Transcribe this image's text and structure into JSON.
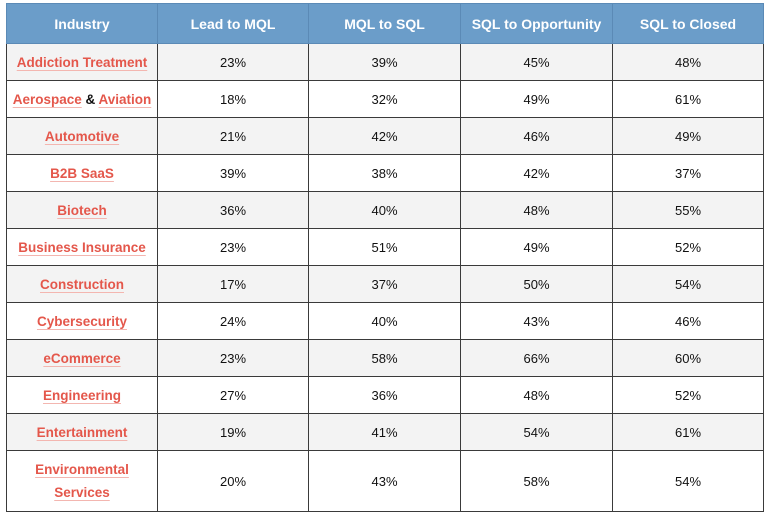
{
  "table": {
    "headers": [
      "Industry",
      "Lead to MQL",
      "MQL to SQL",
      "SQL to Opportunity",
      "SQL to Closed"
    ],
    "rows": [
      {
        "industry": "Addiction Treatment",
        "lead_to_mql": "23%",
        "mql_to_sql": "39%",
        "sql_to_opportunity": "45%",
        "sql_to_closed": "48%"
      },
      {
        "industry_part1": "Aerospace",
        "industry_amp": "&",
        "industry_part2": "Aviation",
        "lead_to_mql": "18%",
        "mql_to_sql": "32%",
        "sql_to_opportunity": "49%",
        "sql_to_closed": "61%"
      },
      {
        "industry": "Automotive",
        "lead_to_mql": "21%",
        "mql_to_sql": "42%",
        "sql_to_opportunity": "46%",
        "sql_to_closed": "49%"
      },
      {
        "industry": "B2B SaaS",
        "lead_to_mql": "39%",
        "mql_to_sql": "38%",
        "sql_to_opportunity": "42%",
        "sql_to_closed": "37%"
      },
      {
        "industry": "Biotech",
        "lead_to_mql": "36%",
        "mql_to_sql": "40%",
        "sql_to_opportunity": "48%",
        "sql_to_closed": "55%"
      },
      {
        "industry": "Business Insurance",
        "lead_to_mql": "23%",
        "mql_to_sql": "51%",
        "sql_to_opportunity": "49%",
        "sql_to_closed": "52%"
      },
      {
        "industry": "Construction",
        "lead_to_mql": "17%",
        "mql_to_sql": "37%",
        "sql_to_opportunity": "50%",
        "sql_to_closed": "54%"
      },
      {
        "industry": "Cybersecurity",
        "lead_to_mql": "24%",
        "mql_to_sql": "40%",
        "sql_to_opportunity": "43%",
        "sql_to_closed": "46%"
      },
      {
        "industry": "eCommerce",
        "lead_to_mql": "23%",
        "mql_to_sql": "58%",
        "sql_to_opportunity": "66%",
        "sql_to_closed": "60%"
      },
      {
        "industry": "Engineering",
        "lead_to_mql": "27%",
        "mql_to_sql": "36%",
        "sql_to_opportunity": "48%",
        "sql_to_closed": "52%"
      },
      {
        "industry": "Entertainment",
        "lead_to_mql": "19%",
        "mql_to_sql": "41%",
        "sql_to_opportunity": "54%",
        "sql_to_closed": "61%"
      },
      {
        "industry_line1": "Environmental",
        "industry_line2": "Services",
        "lead_to_mql": "20%",
        "mql_to_sql": "43%",
        "sql_to_opportunity": "58%",
        "sql_to_closed": "54%"
      }
    ]
  },
  "colors": {
    "header_bg": "#6b9dc9",
    "header_text": "#ffffff",
    "industry_link": "#e4574b",
    "row_shade": "#f3f3f3",
    "border": "#3a3a3a"
  }
}
